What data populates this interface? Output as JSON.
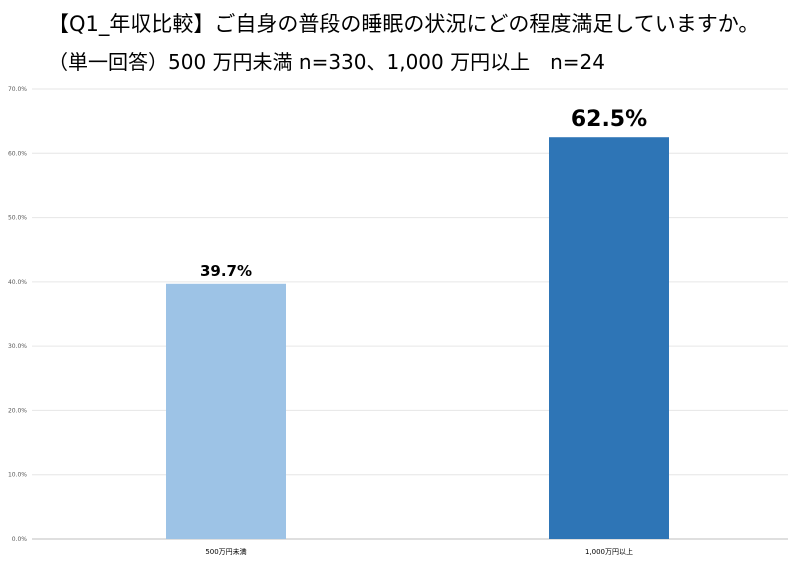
{
  "header": {
    "title": "【Q1_年収比較】ご自身の普段の睡眠の状況にどの程度満足していますか。",
    "subtitle": "（単一回答）500 万円未満 n=330、1,000 万円以上　n=24"
  },
  "chart_data": {
    "type": "bar",
    "title": "【Q1_年収比較】ご自身の普段の睡眠の状況にどの程度満足していますか。",
    "subtitle": "（単一回答）500 万円未満 n=330、1,000 万円以上　n=24",
    "categories": [
      "500万円未満",
      "1,000万円以上"
    ],
    "values": [
      39.7,
      62.5
    ],
    "data_labels": [
      "39.7%",
      "62.5%"
    ],
    "colors": [
      "#9dc3e6",
      "#2e75b6"
    ],
    "yticks": [
      "0.0%",
      "10.0%",
      "20.0%",
      "30.0%",
      "40.0%",
      "50.0%",
      "60.0%",
      "70.0%"
    ],
    "ylim": [
      0,
      70
    ],
    "grid": true,
    "legend": "none"
  }
}
